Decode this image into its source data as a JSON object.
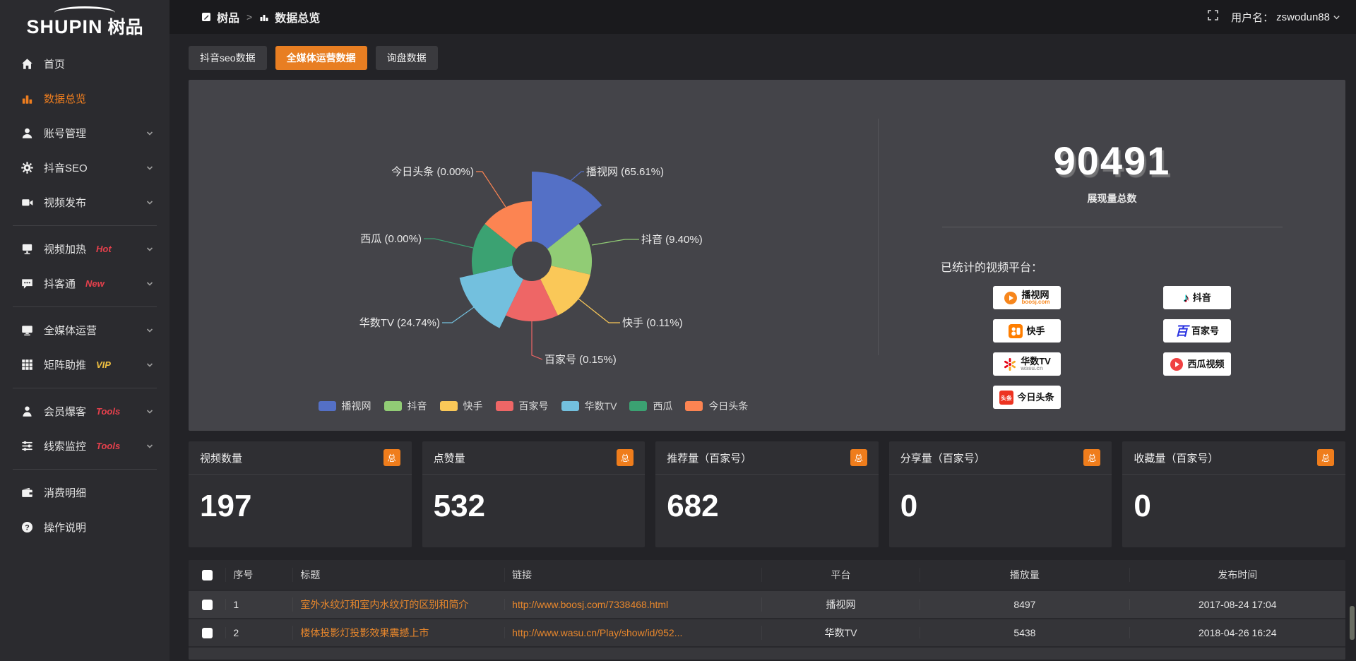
{
  "logo": {
    "latin": "SHUPIN",
    "cn": "树品"
  },
  "topbar": {
    "breadcrumb_home": "树品",
    "breadcrumb_sep": ">",
    "breadcrumb_current": "数据总览",
    "user_label": "用户名：",
    "username": "zswodun88"
  },
  "sidebar": {
    "items": [
      {
        "label": "首页",
        "icon": "home"
      },
      {
        "label": "数据总览",
        "icon": "bars",
        "active": true
      },
      {
        "label": "账号管理",
        "icon": "user",
        "chevron": true
      },
      {
        "label": "抖音SEO",
        "icon": "gear",
        "chevron": true
      },
      {
        "label": "视频发布",
        "icon": "video",
        "chevron": true,
        "divider_after": true
      },
      {
        "label": "视频加热",
        "icon": "screen",
        "badge": "Hot",
        "badge_color": "#e5404c",
        "chevron": true
      },
      {
        "label": "抖客通",
        "icon": "chat",
        "badge": "New",
        "badge_color": "#e5404c",
        "chevron": true,
        "divider_after": true
      },
      {
        "label": "全媒体运营",
        "icon": "monitor",
        "chevron": true
      },
      {
        "label": "矩阵助推",
        "icon": "grid",
        "badge": "VIP",
        "badge_color": "#f0c040",
        "chevron": true,
        "divider_after": true
      },
      {
        "label": "会员爆客",
        "icon": "person",
        "badge": "Tools",
        "badge_color": "#e5404c",
        "chevron": true
      },
      {
        "label": "线索监控",
        "icon": "sliders",
        "badge": "Tools",
        "badge_color": "#e5404c",
        "chevron": true,
        "divider_after": true
      },
      {
        "label": "消费明细",
        "icon": "wallet"
      },
      {
        "label": "操作说明",
        "icon": "question"
      }
    ]
  },
  "tabs": [
    {
      "label": "抖音seo数据",
      "active": false
    },
    {
      "label": "全媒体运营数据",
      "active": true
    },
    {
      "label": "询盘数据",
      "active": false
    }
  ],
  "chart_data": {
    "type": "pie",
    "rose": true,
    "unit": "%",
    "legend_position": "bottom",
    "slices": [
      {
        "name": "播视网",
        "value": 65.61,
        "label": "播视网 (65.61%)",
        "color": "#5470c6"
      },
      {
        "name": "抖音",
        "value": 9.4,
        "label": "抖音 (9.40%)",
        "color": "#91cc75"
      },
      {
        "name": "快手",
        "value": 0.11,
        "label": "快手 (0.11%)",
        "color": "#fac858"
      },
      {
        "name": "百家号",
        "value": 0.15,
        "label": "百家号 (0.15%)",
        "color": "#ee6666"
      },
      {
        "name": "华数TV",
        "value": 24.74,
        "label": "华数TV (24.74%)",
        "color": "#73c0de"
      },
      {
        "name": "西瓜",
        "value": 0.0,
        "label": "西瓜 (0.00%)",
        "color": "#3ba272"
      },
      {
        "name": "今日头条",
        "value": 0.0,
        "label": "今日头条 (0.00%)",
        "color": "#fc8452"
      }
    ]
  },
  "summary": {
    "total": "90491",
    "total_label": "展现量总数",
    "platforms_title": "已统计的视频平台：",
    "platforms": [
      {
        "name": "播视网",
        "sub": "boosj.com",
        "logo": "boosj",
        "column": "left"
      },
      {
        "name": "快手",
        "logo": "kuaishou",
        "column": "left"
      },
      {
        "name": "华数TV",
        "sub": "wasu.cn",
        "logo": "wasu",
        "column": "left"
      },
      {
        "name": "今日头条",
        "logo": "toutiao",
        "column": "left"
      },
      {
        "name": "抖音",
        "logo": "douyin",
        "column": "right"
      },
      {
        "name": "百家号",
        "logo": "baijiahao",
        "column": "right"
      },
      {
        "name": "西瓜视频",
        "logo": "xigua",
        "column": "right"
      }
    ]
  },
  "stats": [
    {
      "title": "视频数量",
      "badge": "总",
      "value": "197"
    },
    {
      "title": "点赞量",
      "badge": "总",
      "value": "532"
    },
    {
      "title": "推荐量（百家号）",
      "badge": "总",
      "value": "682"
    },
    {
      "title": "分享量（百家号）",
      "badge": "总",
      "value": "0"
    },
    {
      "title": "收藏量（百家号）",
      "badge": "总",
      "value": "0"
    }
  ],
  "table": {
    "columns": [
      "序号",
      "标题",
      "链接",
      "平台",
      "播放量",
      "发布时间"
    ],
    "rows": [
      {
        "index": "1",
        "title": "室外水纹灯和室内水纹灯的区别和简介",
        "link": "http://www.boosj.com/7338468.html",
        "platform": "播视网",
        "views": "8497",
        "time": "2017-08-24 17:04"
      },
      {
        "index": "2",
        "title": "楼体投影灯投影效果震撼上市",
        "link": "http://www.wasu.cn/Play/show/id/952...",
        "platform": "华数TV",
        "views": "5438",
        "time": "2018-04-26 16:24"
      }
    ]
  }
}
